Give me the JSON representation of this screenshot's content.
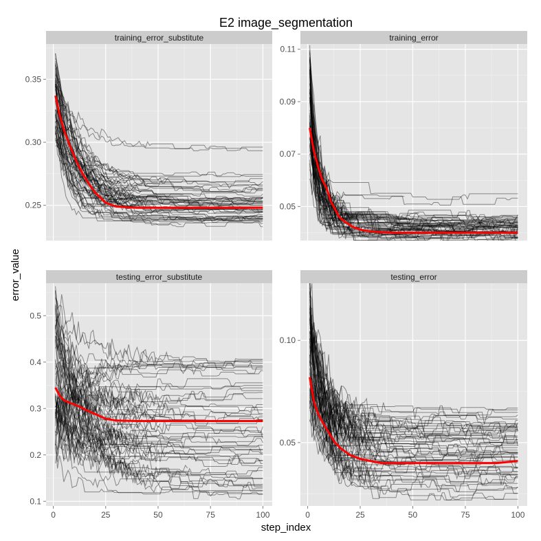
{
  "chart_data": {
    "type": "line",
    "title": "E2 image_segmentation",
    "xlabel": "step_index",
    "ylabel": "error_value",
    "grid": true,
    "x_range": [
      1,
      100
    ],
    "x_ticks": [
      0,
      25,
      50,
      75,
      100
    ],
    "panels": [
      {
        "name": "training_error_substitute",
        "ylim": [
          0.222,
          0.378
        ],
        "y_ticks": [
          0.25,
          0.3,
          0.35
        ],
        "y_tick_labels": [
          "0.25",
          "0.30",
          "0.35"
        ],
        "spaghetti": {
          "count": 60,
          "start_min": 0.3,
          "start_max": 0.37,
          "final_values": [
            0.295,
            0.275,
            0.27,
            0.267,
            0.265,
            0.262,
            0.262,
            0.258,
            0.256,
            0.255,
            0.255,
            0.253,
            0.252,
            0.252,
            0.25,
            0.25,
            0.248,
            0.247,
            0.247,
            0.246,
            0.245,
            0.244,
            0.242,
            0.241,
            0.24,
            0.24,
            0.238,
            0.237,
            0.236,
            0.235
          ],
          "tau_min": 4,
          "tau_max": 16,
          "noise": 0.0035
        },
        "mean_series": {
          "name": "mean",
          "x": [
            1,
            3,
            5,
            8,
            11,
            14,
            17,
            20,
            25,
            30,
            40,
            50,
            60,
            70,
            80,
            90,
            100
          ],
          "y": [
            0.337,
            0.322,
            0.31,
            0.297,
            0.285,
            0.275,
            0.267,
            0.26,
            0.252,
            0.249,
            0.248,
            0.248,
            0.248,
            0.248,
            0.248,
            0.248,
            0.248
          ]
        }
      },
      {
        "name": "training_error",
        "ylim": [
          0.037,
          0.112
        ],
        "y_ticks": [
          0.05,
          0.07,
          0.09,
          0.11
        ],
        "y_tick_labels": [
          "0.05",
          "0.07",
          "0.09",
          "0.11"
        ],
        "spaghetti": {
          "count": 60,
          "start_min": 0.065,
          "start_max": 0.107,
          "final_values": [
            0.053,
            0.047,
            0.046,
            0.045,
            0.045,
            0.044,
            0.044,
            0.043,
            0.043,
            0.042,
            0.042,
            0.042,
            0.041,
            0.041,
            0.041,
            0.04,
            0.04,
            0.04,
            0.04,
            0.039,
            0.039,
            0.039,
            0.038,
            0.038
          ],
          "tau_min": 2,
          "tau_max": 8,
          "noise": 0.0035
        },
        "mean_series": {
          "name": "mean",
          "x": [
            1,
            3,
            5,
            7,
            9,
            11,
            13,
            15,
            18,
            22,
            26,
            30,
            40,
            50,
            60,
            70,
            80,
            90,
            100
          ],
          "y": [
            0.08,
            0.071,
            0.065,
            0.06,
            0.057,
            0.052,
            0.049,
            0.046,
            0.044,
            0.042,
            0.041,
            0.0405,
            0.04,
            0.04,
            0.04,
            0.04,
            0.04,
            0.04,
            0.04
          ]
        }
      },
      {
        "name": "testing_error_substitute",
        "ylim": [
          0.09,
          0.57
        ],
        "y_ticks": [
          0.1,
          0.2,
          0.3,
          0.4,
          0.5
        ],
        "y_tick_labels": [
          "0.1",
          "0.2",
          "0.3",
          "0.4",
          "0.5"
        ],
        "spaghetti": {
          "count": 60,
          "start_min": 0.2,
          "start_max": 0.55,
          "final_values": [
            0.405,
            0.4,
            0.395,
            0.39,
            0.38,
            0.35,
            0.34,
            0.33,
            0.3,
            0.29,
            0.28,
            0.28,
            0.27,
            0.26,
            0.25,
            0.24,
            0.23,
            0.225,
            0.22,
            0.215,
            0.21,
            0.2,
            0.19,
            0.18,
            0.16,
            0.15,
            0.14,
            0.13,
            0.125,
            0.115
          ],
          "tau_min": 5,
          "tau_max": 20,
          "noise": 0.02
        },
        "mean_series": {
          "name": "mean",
          "x": [
            1,
            3,
            5,
            8,
            12,
            16,
            20,
            25,
            30,
            40,
            50,
            60,
            70,
            80,
            90,
            100
          ],
          "y": [
            0.345,
            0.328,
            0.318,
            0.312,
            0.305,
            0.296,
            0.288,
            0.278,
            0.274,
            0.273,
            0.273,
            0.273,
            0.273,
            0.273,
            0.273,
            0.273
          ]
        }
      },
      {
        "name": "testing_error",
        "ylim": [
          0.019,
          0.128
        ],
        "y_ticks": [
          0.05,
          0.1
        ],
        "y_tick_labels": [
          "0.05",
          "0.10"
        ],
        "spaghetti": {
          "count": 60,
          "start_min": 0.06,
          "start_max": 0.125,
          "final_values": [
            0.065,
            0.062,
            0.06,
            0.058,
            0.056,
            0.055,
            0.053,
            0.05,
            0.048,
            0.047,
            0.045,
            0.043,
            0.042,
            0.04,
            0.038,
            0.035,
            0.033,
            0.03,
            0.028,
            0.025
          ],
          "tau_min": 4,
          "tau_max": 12,
          "noise": 0.006
        },
        "mean_series": {
          "name": "mean",
          "x": [
            1,
            3,
            5,
            7,
            10,
            13,
            16,
            20,
            25,
            30,
            35,
            40,
            50,
            60,
            70,
            80,
            90,
            100
          ],
          "y": [
            0.082,
            0.07,
            0.064,
            0.06,
            0.055,
            0.05,
            0.047,
            0.044,
            0.042,
            0.041,
            0.04,
            0.04,
            0.04,
            0.04,
            0.04,
            0.04,
            0.04,
            0.041
          ]
        }
      }
    ]
  }
}
